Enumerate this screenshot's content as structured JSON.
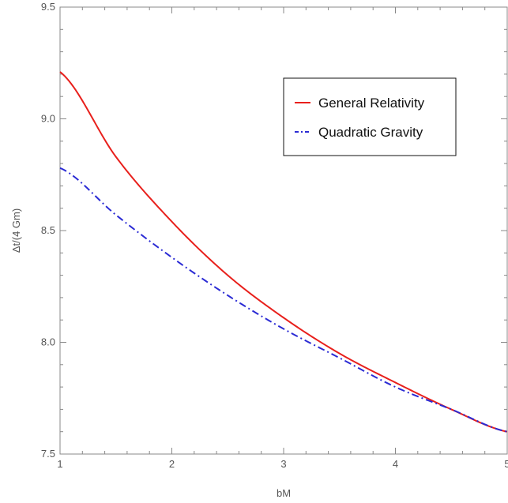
{
  "chart_data": {
    "type": "line",
    "title": "",
    "xlabel": "bM",
    "ylabel": "Δt/(4 Gm)",
    "xlim": [
      1,
      5
    ],
    "ylim": [
      7.5,
      9.5
    ],
    "xticks": [
      1,
      2,
      3,
      4,
      5
    ],
    "xtick_labels": [
      "1",
      "2",
      "3",
      "4",
      "5"
    ],
    "yticks": [
      7.5,
      8.0,
      8.5,
      9.0,
      9.5
    ],
    "ytick_labels": [
      "7.5",
      "8.0",
      "8.5",
      "9.0",
      "9.5"
    ],
    "grid": false,
    "legend_position": "top-right",
    "x": [
      1.0,
      1.5,
      2.0,
      2.5,
      3.0,
      3.5,
      4.0,
      4.5,
      5.0
    ],
    "series": [
      {
        "name": "General Relativity",
        "color": "#e8201c",
        "style": "solid",
        "values": [
          9.21,
          8.83,
          8.54,
          8.3,
          8.11,
          7.95,
          7.82,
          7.7,
          7.6
        ]
      },
      {
        "name": "Quadratic Gravity",
        "color": "#2b2bd4",
        "style": "dash-dot",
        "values": [
          8.78,
          8.57,
          8.38,
          8.21,
          8.06,
          7.93,
          7.8,
          7.7,
          7.6
        ]
      }
    ]
  }
}
